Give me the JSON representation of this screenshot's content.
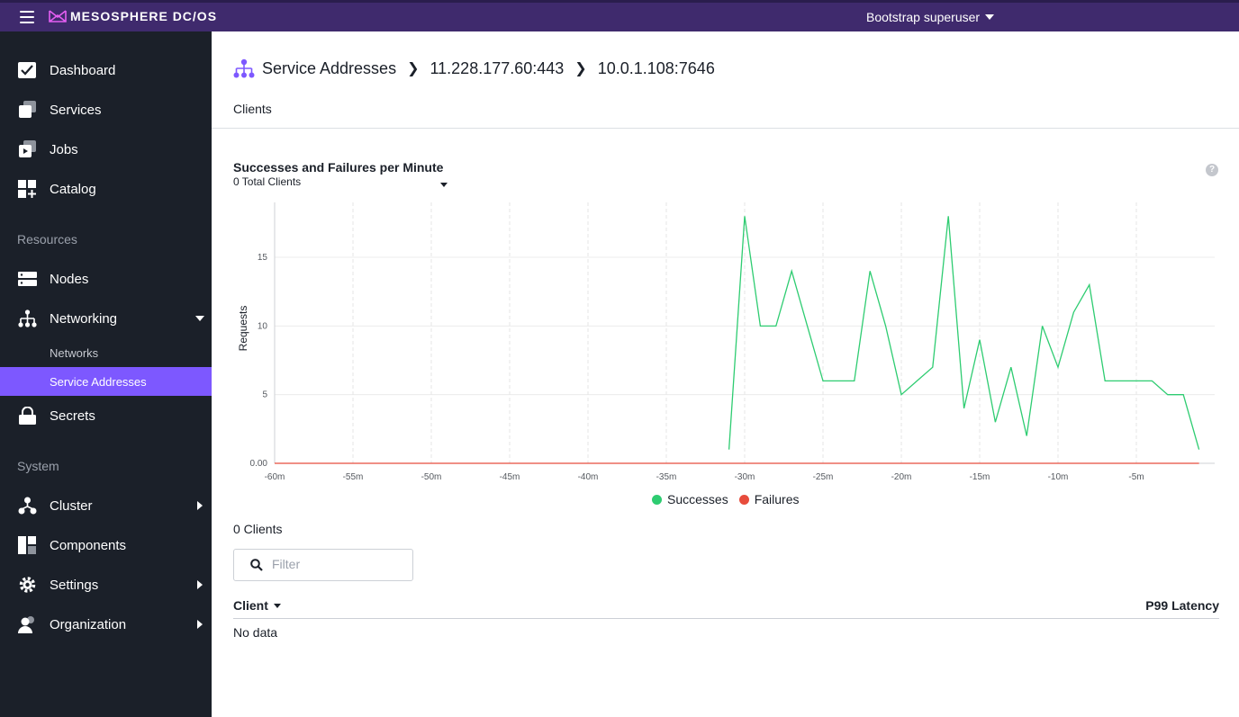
{
  "topbar": {
    "brand_name": "MESOSPHERE DC/OS",
    "user": "Bootstrap superuser"
  },
  "sidebar": {
    "items": [
      {
        "label": "Dashboard",
        "icon": "dashboard-icon"
      },
      {
        "label": "Services",
        "icon": "services-icon"
      },
      {
        "label": "Jobs",
        "icon": "jobs-icon"
      },
      {
        "label": "Catalog",
        "icon": "catalog-icon"
      }
    ],
    "resources_heading": "Resources",
    "resources": [
      {
        "label": "Nodes",
        "icon": "nodes-icon"
      },
      {
        "label": "Networking",
        "icon": "networking-icon"
      }
    ],
    "networking_sub": [
      {
        "label": "Networks"
      },
      {
        "label": "Service Addresses"
      }
    ],
    "secrets": {
      "label": "Secrets",
      "icon": "lock-icon"
    },
    "system_heading": "System",
    "system": [
      {
        "label": "Cluster",
        "icon": "cluster-icon"
      },
      {
        "label": "Components",
        "icon": "components-icon"
      },
      {
        "label": "Settings",
        "icon": "gear-icon"
      },
      {
        "label": "Organization",
        "icon": "organization-icon"
      }
    ]
  },
  "breadcrumb": {
    "root": "Service Addresses",
    "level1": "11.228.177.60:443",
    "level2": "10.0.1.108:7646"
  },
  "tabs": {
    "clients": "Clients"
  },
  "chart_panel": {
    "title": "Successes and Failures per Minute",
    "subtitle": "0 Total Clients",
    "help": "?"
  },
  "chart_data": {
    "type": "line",
    "xlabel": "",
    "ylabel": "Requests",
    "xlim": [
      -60,
      0
    ],
    "ylim": [
      0,
      19
    ],
    "x_ticks": [
      -60,
      -55,
      -50,
      -45,
      -40,
      -35,
      -30,
      -25,
      -20,
      -15,
      -10,
      -5
    ],
    "x_tick_labels": [
      "-60m",
      "-55m",
      "-50m",
      "-45m",
      "-40m",
      "-35m",
      "-30m",
      "-25m",
      "-20m",
      "-15m",
      "-10m",
      "-5m"
    ],
    "y_ticks": [
      0,
      5,
      10,
      15
    ],
    "y_tick_labels": [
      "0.00",
      "5",
      "10",
      "15"
    ],
    "grid": true,
    "legend_position": "bottom",
    "series": [
      {
        "name": "Successes",
        "color": "#2ecc71",
        "x": [
          -31,
          -30,
          -29,
          -28,
          -27,
          -26,
          -25,
          -24,
          -23,
          -22,
          -21,
          -20,
          -19,
          -18,
          -17,
          -16,
          -15,
          -14,
          -13,
          -12,
          -11,
          -10,
          -9,
          -8,
          -7,
          -6,
          -5,
          -4,
          -3,
          -2,
          -1
        ],
        "y": [
          1,
          18,
          10,
          10,
          14,
          10,
          6,
          6,
          6,
          14,
          10,
          5,
          6,
          7,
          18,
          4,
          9,
          3,
          7,
          2,
          10,
          7,
          11,
          13,
          6,
          6,
          6,
          6,
          5,
          5,
          1
        ]
      },
      {
        "name": "Failures",
        "color": "#e74c3c",
        "x": [
          -60,
          -1
        ],
        "y": [
          0,
          0
        ]
      }
    ]
  },
  "clients": {
    "count": "0 Clients",
    "filter_placeholder": "Filter",
    "col_client": "Client",
    "col_p99": "P99 Latency",
    "empty": "No data"
  }
}
